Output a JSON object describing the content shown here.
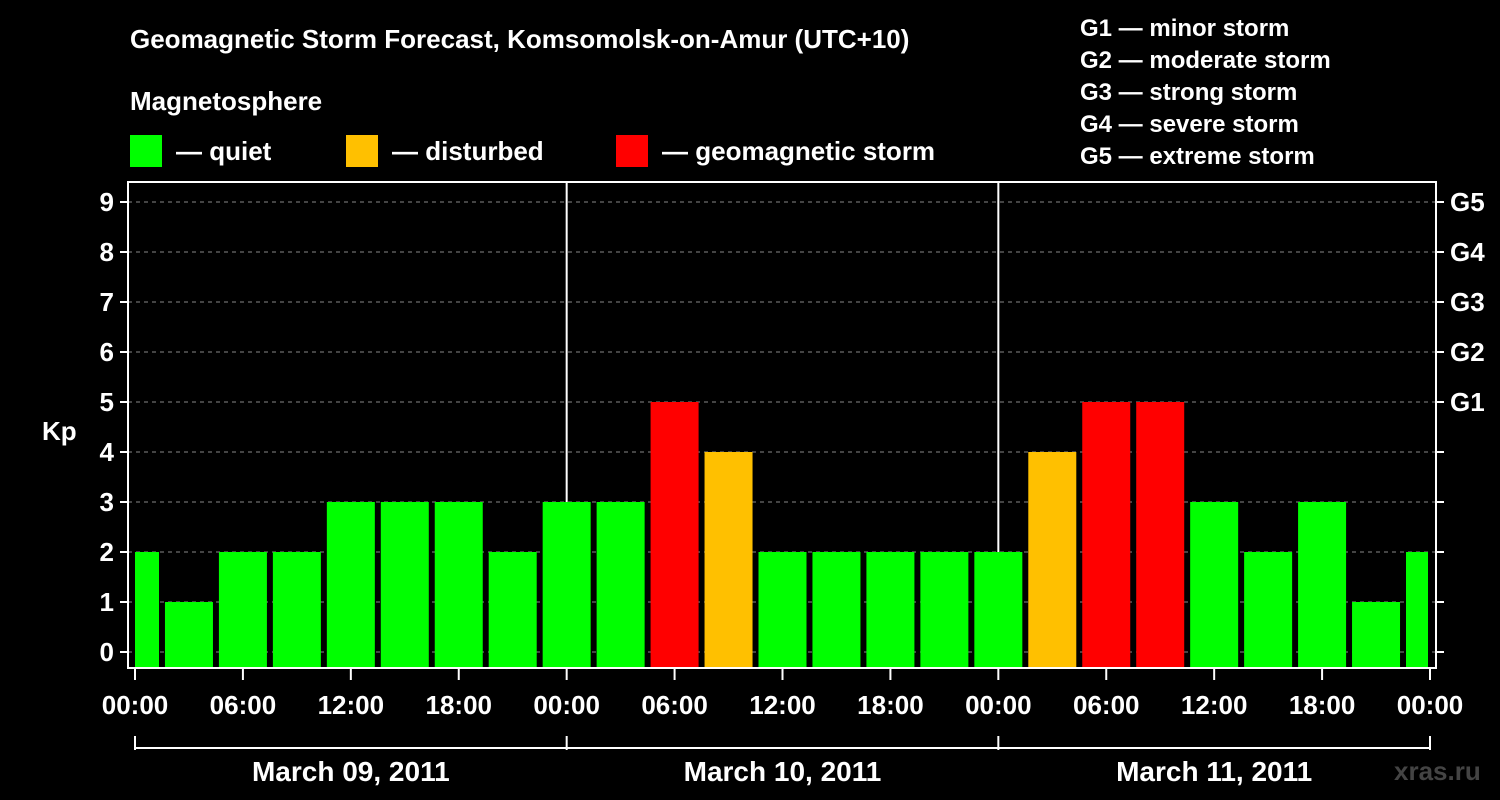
{
  "title": "Geomagnetic Storm Forecast, Komsomolsk-on-Amur (UTC+10)",
  "legend": {
    "heading": "Magnetosphere",
    "items": [
      {
        "label": "— quiet",
        "color": "#00ff00"
      },
      {
        "label": "— disturbed",
        "color": "#ffc000"
      },
      {
        "label": "— geomagnetic storm",
        "color": "#ff0000"
      }
    ]
  },
  "g_scale": [
    {
      "text": "G1 — minor storm"
    },
    {
      "text": "G2 — moderate storm"
    },
    {
      "text": "G3 — strong storm"
    },
    {
      "text": "G4 — severe storm"
    },
    {
      "text": "G5 — extreme storm"
    }
  ],
  "watermark": "xras.ru",
  "chart_data": {
    "type": "bar",
    "ylabel": "Kp",
    "ylim": [
      0,
      9
    ],
    "yticks": [
      "0",
      "1",
      "2",
      "3",
      "4",
      "5",
      "6",
      "7",
      "8",
      "9"
    ],
    "right_axis_labels": [
      {
        "kp": 5,
        "label": "G1"
      },
      {
        "kp": 6,
        "label": "G2"
      },
      {
        "kp": 7,
        "label": "G3"
      },
      {
        "kp": 8,
        "label": "G4"
      },
      {
        "kp": 9,
        "label": "G5"
      }
    ],
    "xtick_labels": [
      "00:00",
      "06:00",
      "12:00",
      "18:00",
      "00:00",
      "06:00",
      "12:00",
      "18:00",
      "00:00",
      "06:00",
      "12:00",
      "18:00",
      "00:00"
    ],
    "days": [
      "March 09, 2011",
      "March 10, 2011",
      "March 11, 2011"
    ],
    "interval_hours": 3,
    "grid": "horizontal dashed",
    "thresholds": {
      "disturbed": 4,
      "storm": 5
    },
    "values": [
      2,
      1,
      2,
      2,
      3,
      3,
      3,
      2,
      3,
      3,
      5,
      4,
      2,
      2,
      2,
      2,
      2,
      4,
      5,
      5,
      3,
      2,
      3,
      1,
      2
    ]
  }
}
